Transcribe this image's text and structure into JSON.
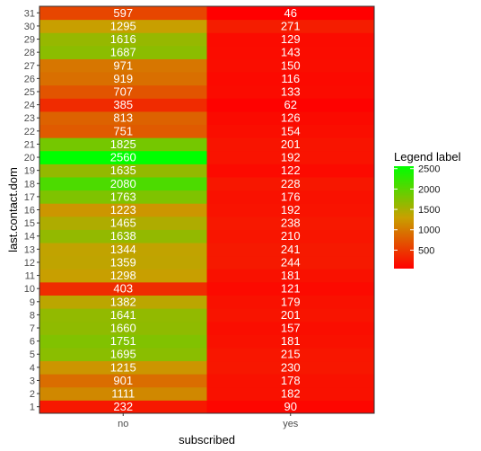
{
  "chart_data": {
    "type": "heatmap",
    "xlabel": "subscribed",
    "ylabel": "last.contact.dom",
    "x_categories": [
      "no",
      "yes"
    ],
    "y_categories": [
      "1",
      "2",
      "3",
      "4",
      "5",
      "6",
      "7",
      "8",
      "9",
      "10",
      "11",
      "12",
      "13",
      "14",
      "15",
      "16",
      "17",
      "18",
      "19",
      "20",
      "21",
      "22",
      "23",
      "24",
      "25",
      "26",
      "27",
      "28",
      "29",
      "30",
      "31"
    ],
    "values": {
      "no": [
        232,
        1111,
        901,
        1215,
        1695,
        1751,
        1660,
        1641,
        1382,
        403,
        1298,
        1359,
        1344,
        1638,
        1465,
        1223,
        1763,
        2080,
        1635,
        2560,
        1825,
        751,
        813,
        385,
        707,
        919,
        971,
        1687,
        1616,
        1295,
        597
      ],
      "yes": [
        90,
        182,
        178,
        230,
        215,
        181,
        157,
        201,
        179,
        121,
        181,
        244,
        241,
        210,
        238,
        192,
        176,
        228,
        122,
        192,
        201,
        154,
        126,
        62,
        133,
        116,
        150,
        143,
        129,
        271,
        46
      ]
    },
    "legend": {
      "title": "Legend label",
      "ticks": [
        500,
        1000,
        1500,
        2000,
        2500
      ],
      "range": [
        46,
        2560
      ],
      "colors": {
        "low": "#ff0000",
        "mid": "#c8a000",
        "high": "#00ff00"
      }
    }
  }
}
